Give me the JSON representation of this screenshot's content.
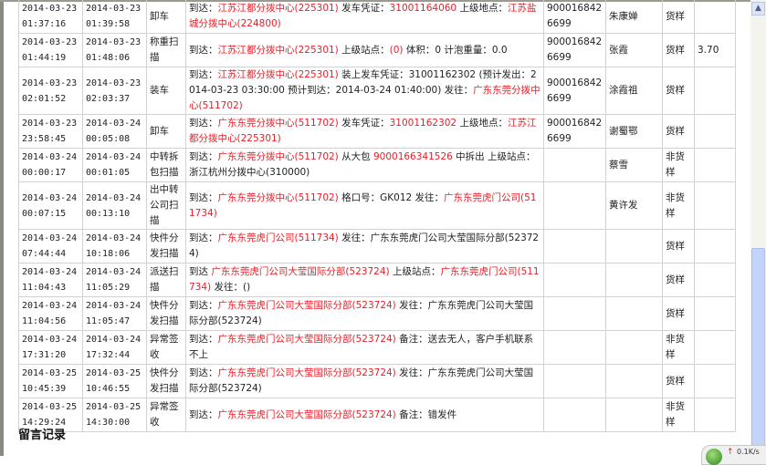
{
  "columns_note": "",
  "rows": [
    {
      "t1": [
        "2014-03-23",
        "01:37:16"
      ],
      "t2": [
        "2014-03-23",
        "01:39:58"
      ],
      "action": "卸车",
      "desc": [
        [
          "到达：",
          0
        ],
        [
          "江苏江都分拨中心(225301)",
          1
        ],
        [
          " 发车凭证：",
          0
        ],
        [
          "31001164060",
          1
        ],
        [
          " 上级地点：",
          0
        ],
        [
          "江苏盐城分拨中心(224800)",
          1
        ]
      ],
      "code": "9000168426699",
      "person": "朱康婵",
      "type": "货样",
      "weight": ""
    },
    {
      "t1": [
        "2014-03-23",
        "01:44:19"
      ],
      "t2": [
        "2014-03-23",
        "01:48:06"
      ],
      "action": "称重扫描",
      "desc": [
        [
          "到达：",
          0
        ],
        [
          "江苏江都分拨中心(225301)",
          1
        ],
        [
          " 上级站点：",
          0
        ],
        [
          "(0)",
          1
        ],
        [
          " 体积：0 计泡重量：0.0",
          0
        ]
      ],
      "code": "9000168426699",
      "person": "张霞",
      "type": "货样",
      "weight": "3.70"
    },
    {
      "t1": [
        "2014-03-23",
        "02:01:52"
      ],
      "t2": [
        "2014-03-23",
        "02:03:37"
      ],
      "action": "装车",
      "desc": [
        [
          "到达：",
          0
        ],
        [
          "江苏江都分拨中心(225301)",
          1
        ],
        [
          " 装上发车凭证：31001162302 (预计发出：2014-03-23 03:30:00 预计到达：2014-03-24 01:40:00) 发往：",
          0
        ],
        [
          "广东东莞分拨中心(511702)",
          1
        ]
      ],
      "code": "9000168426699",
      "person": "涂霞祖",
      "type": "货样",
      "weight": ""
    },
    {
      "t1": [
        "2014-03-23",
        "23:58:45"
      ],
      "t2": [
        "2014-03-24",
        "00:05:08"
      ],
      "action": "卸车",
      "desc": [
        [
          "到达：",
          0
        ],
        [
          "广东东莞分拨中心(511702)",
          1
        ],
        [
          " 发车凭证：",
          0
        ],
        [
          "31001162302",
          1
        ],
        [
          " 上级地点：",
          0
        ],
        [
          "江苏江都分拨中心(225301)",
          1
        ]
      ],
      "code": "9000168426699",
      "person": "谢蜀鄂",
      "type": "货样",
      "weight": ""
    },
    {
      "t1": [
        "2014-03-24",
        "00:00:17"
      ],
      "t2": [
        "2014-03-24",
        "00:01:05"
      ],
      "action": "中转拆包扫描",
      "desc": [
        [
          "到达：",
          0
        ],
        [
          "广东东莞分拨中心(511702)",
          1
        ],
        [
          " 从大包 ",
          0
        ],
        [
          "9000166341526",
          1
        ],
        [
          " 中拆出 上级站点：浙江杭州分拨中心(310000)",
          0
        ]
      ],
      "code": "",
      "person": "蔡雪",
      "type": "非货样",
      "weight": ""
    },
    {
      "t1": [
        "2014-03-24",
        "00:07:15"
      ],
      "t2": [
        "2014-03-24",
        "00:13:10"
      ],
      "action": "出中转公司扫描",
      "desc": [
        [
          "到达：",
          0
        ],
        [
          "广东东莞分拨中心(511702)",
          1
        ],
        [
          " 格口号：GK012 发往：",
          0
        ],
        [
          "广东东莞虎门公司(511734)",
          1
        ]
      ],
      "code": "",
      "person": "黄许发",
      "type": "非货样",
      "weight": ""
    },
    {
      "t1": [
        "2014-03-24",
        "07:44:44"
      ],
      "t2": [
        "2014-03-24",
        "10:18:06"
      ],
      "action": "快件分发扫描",
      "desc": [
        [
          "到达：",
          0
        ],
        [
          "广东东莞虎门公司(511734)",
          1
        ],
        [
          " 发往：广东东莞虎门公司大莹国际分部(523724)",
          0
        ]
      ],
      "code": "",
      "person": "",
      "type": "货样",
      "weight": ""
    },
    {
      "t1": [
        "2014-03-24",
        "11:04:43"
      ],
      "t2": [
        "2014-03-24",
        "11:05:29"
      ],
      "action": "派送扫描",
      "desc": [
        [
          "到达 ",
          0
        ],
        [
          "广东东莞虎门公司大莹国际分部(523724)",
          1
        ],
        [
          " 上级站点：",
          0
        ],
        [
          "广东东莞虎门公司(511734)",
          1
        ],
        [
          " 发往：()",
          0
        ]
      ],
      "code": "",
      "person": "",
      "type": "货样",
      "weight": ""
    },
    {
      "t1": [
        "2014-03-24",
        "11:04:56"
      ],
      "t2": [
        "2014-03-24",
        "11:05:47"
      ],
      "action": "快件分发扫描",
      "desc": [
        [
          "到达：",
          0
        ],
        [
          "广东东莞虎门公司大莹国际分部(523724)",
          1
        ],
        [
          " 发往：广东东莞虎门公司大莹国际分部(523724)",
          0
        ]
      ],
      "code": "",
      "person": "",
      "type": "货样",
      "weight": ""
    },
    {
      "t1": [
        "2014-03-24",
        "17:31:20"
      ],
      "t2": [
        "2014-03-24",
        "17:32:44"
      ],
      "action": "异常签收",
      "desc": [
        [
          "到达：",
          0
        ],
        [
          "广东东莞虎门公司大莹国际分部(523724)",
          1
        ],
        [
          " 备注：送去无人，客户手机联系不上",
          0
        ]
      ],
      "code": "",
      "person": "",
      "type": "非货样",
      "weight": ""
    },
    {
      "t1": [
        "2014-03-25",
        "10:45:39"
      ],
      "t2": [
        "2014-03-25",
        "10:46:55"
      ],
      "action": "快件分发扫描",
      "desc": [
        [
          "到达：",
          0
        ],
        [
          "广东东莞虎门公司大莹国际分部(523724)",
          1
        ],
        [
          " 发往：广东东莞虎门公司大莹国际分部(523724)",
          0
        ]
      ],
      "code": "",
      "person": "",
      "type": "货样",
      "weight": ""
    },
    {
      "t1": [
        "2014-03-25",
        "14:29:24"
      ],
      "t2": [
        "2014-03-25",
        "14:30:00"
      ],
      "action": "异常签收",
      "desc": [
        [
          "到达：",
          0
        ],
        [
          "广东东莞虎门公司大莹国际分部(523724)",
          1
        ],
        [
          " 备注：错发件",
          0
        ]
      ],
      "code": "",
      "person": "",
      "type": "非货样",
      "weight": ""
    }
  ],
  "section_title": "留言记录",
  "scrollbar": {
    "position_percent": 100
  },
  "network_widget": {
    "arrow": "↑",
    "rate": "0.1K/s",
    "icon": "green-ball-icon"
  },
  "colors": {
    "highlight": "#e8202a",
    "border": "#d2d2d2"
  }
}
